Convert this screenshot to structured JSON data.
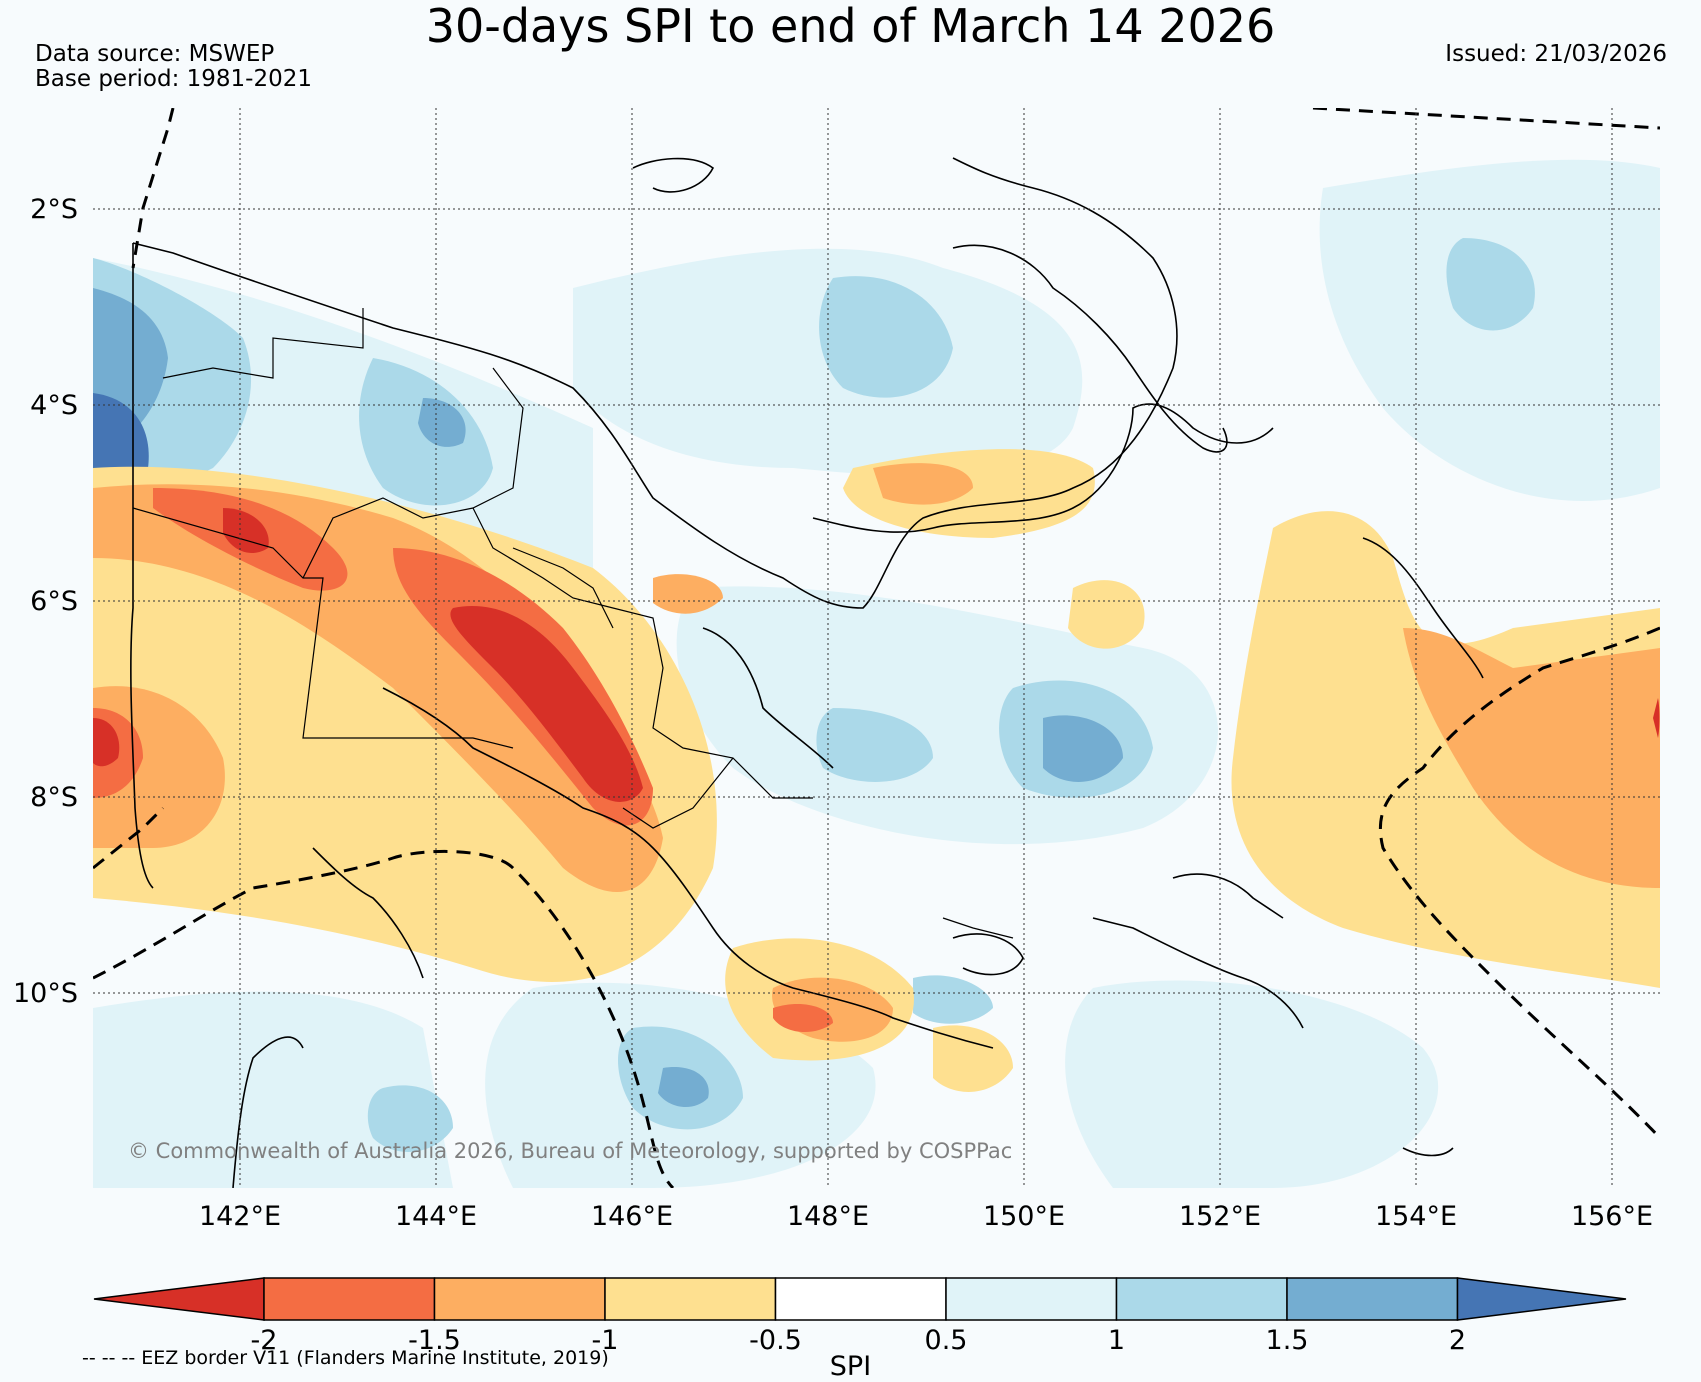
{
  "title": "30-days SPI to end of March 14 2026",
  "data_source": "Data source: MSWEP",
  "base_period": "Base period: 1981-2021",
  "issued": "Issued: 21/03/2026",
  "copyright": "© Commonwealth of Australia 2026, Bureau of Meteorology, supported by COSPPac",
  "eez_note": "-- -- -- EEZ border V11 (Flanders Marine Institute, 2019)",
  "map": {
    "lon_range": [
      140.5,
      156.5
    ],
    "lat_range": [
      -12,
      -1
    ],
    "lon_ticks": [
      "142°E",
      "144°E",
      "146°E",
      "148°E",
      "150°E",
      "152°E",
      "154°E",
      "156°E"
    ],
    "lat_ticks": [
      "2°S",
      "4°S",
      "6°S",
      "8°S",
      "10°S"
    ],
    "grid": "on"
  },
  "colorbar": {
    "label": "SPI",
    "ticks": [
      "-2",
      "-1.5",
      "-1",
      "-0.5",
      "0.5",
      "1",
      "1.5",
      "2"
    ],
    "colors": [
      "#d73027",
      "#f46d43",
      "#fdae61",
      "#fee090",
      "#ffffff",
      "#e0f3f8",
      "#abd9e9",
      "#74add1",
      "#4575b4"
    ]
  }
}
